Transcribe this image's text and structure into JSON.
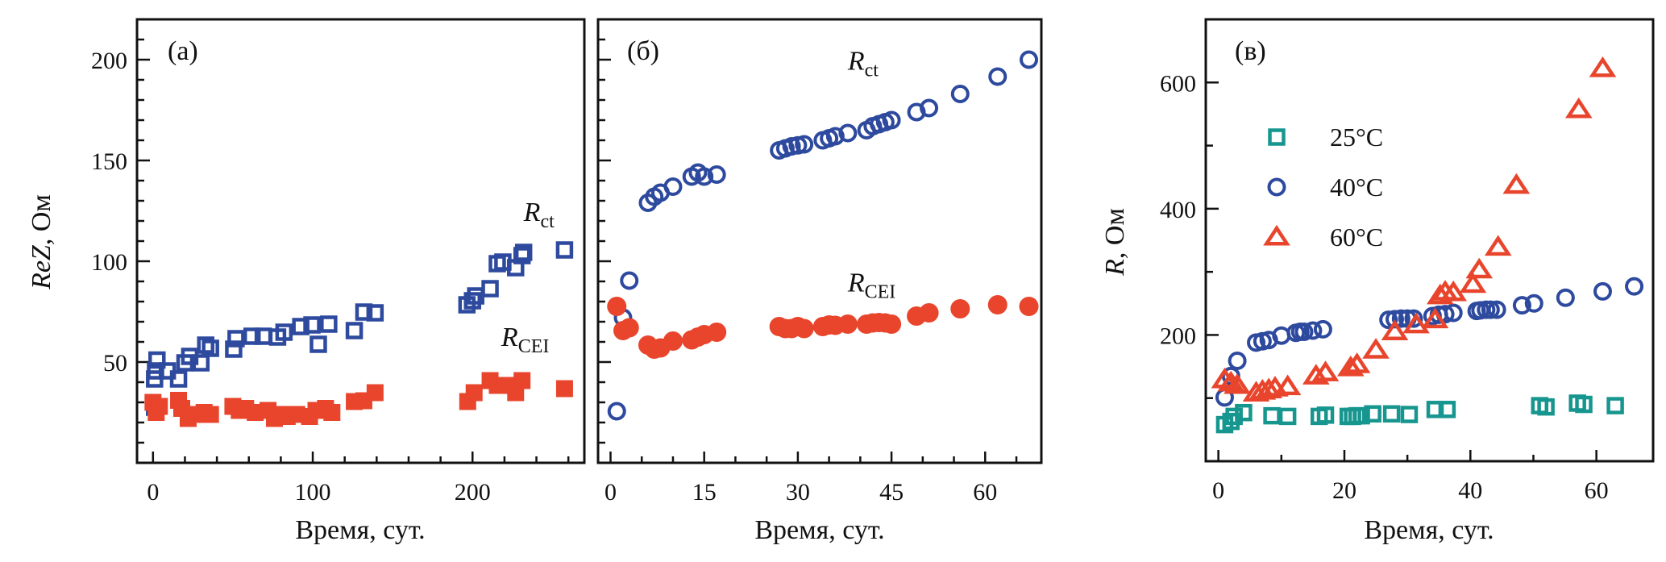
{
  "chart_data": [
    {
      "id": "a",
      "type": "scatter",
      "panel_label": "(а)",
      "xlabel": "Время, сут.",
      "ylabel_main": "ReZ",
      "ylabel_rest": ", Ом",
      "xlim": [
        -10,
        270
      ],
      "ylim": [
        0,
        220
      ],
      "xticks": [
        0,
        100,
        200
      ],
      "xminor_step": 20,
      "yticks": [
        50,
        100,
        150,
        200
      ],
      "yminor_step": 10,
      "grid": false,
      "annotations": [
        {
          "main": "R",
          "sub": "ct",
          "x": 232,
          "y": 120
        },
        {
          "main": "R",
          "sub": "CEI",
          "x": 218,
          "y": 58
        }
      ],
      "series": [
        {
          "name": "Rct",
          "marker": "square-open",
          "color": "#2e4a9e",
          "x": [
            1,
            2.5,
            1.6,
            1,
            9,
            16,
            20,
            23,
            30,
            33,
            36,
            50.5,
            52,
            62,
            69,
            78,
            82,
            92.5,
            99.5,
            103.5,
            110,
            126,
            132,
            139,
            196.5,
            200,
            202,
            211,
            215.5,
            219,
            227,
            231,
            232,
            257.6
          ],
          "y": [
            27.6,
            51,
            45.6,
            41.6,
            45.6,
            41.6,
            49.6,
            52.8,
            49.6,
            58.4,
            56.8,
            56.4,
            61.6,
            62.8,
            62.8,
            62.4,
            64.8,
            67.6,
            68.4,
            58.8,
            68.8,
            65.6,
            74.8,
            74.4,
            78.4,
            80.4,
            82.8,
            86.4,
            98.8,
            99.6,
            96.8,
            102.8,
            104.4,
            105.6
          ]
        },
        {
          "name": "RCEI",
          "marker": "square-filled",
          "color": "#e8452c",
          "x": [
            0,
            2,
            4,
            16,
            18,
            22,
            26,
            32,
            36,
            50,
            54,
            58,
            64,
            72,
            76,
            80,
            84,
            90,
            98,
            102,
            108,
            112,
            126,
            132,
            139,
            197,
            201,
            211,
            215.5,
            220.7,
            227,
            231,
            257.6
          ],
          "y": [
            30,
            25,
            28,
            31,
            27,
            22,
            24,
            25,
            24,
            28,
            26,
            27,
            25,
            26,
            22,
            24,
            23,
            24,
            23,
            26,
            27,
            25,
            30.4,
            30.8,
            34.8,
            30.4,
            34.8,
            40.8,
            38.4,
            38.4,
            34.8,
            40.8,
            36.8
          ]
        }
      ]
    },
    {
      "id": "b",
      "type": "scatter",
      "panel_label": "(б)",
      "xlabel": "Время, сут.",
      "xlim": [
        -2,
        69
      ],
      "ylim": [
        0,
        220
      ],
      "xticks": [
        0,
        15,
        30,
        45,
        60
      ],
      "xminor_step": 5,
      "yticks": [
        50,
        100,
        150,
        200
      ],
      "yminor_step": 10,
      "show_ytick_labels": false,
      "grid": false,
      "annotations": [
        {
          "main": "R",
          "sub": "ct",
          "x": 38,
          "y": 195
        },
        {
          "main": "R",
          "sub": "CEI",
          "x": 38,
          "y": 85
        }
      ],
      "series": [
        {
          "name": "Rct",
          "marker": "circle-open",
          "color": "#2e4a9e",
          "x": [
            1,
            2,
            3,
            6,
            7,
            8,
            10,
            13,
            14,
            15,
            17,
            27,
            28,
            29,
            30,
            31,
            34,
            35,
            36,
            38,
            41,
            42,
            43,
            44,
            45,
            49,
            51,
            56,
            62,
            67
          ],
          "y": [
            25.6,
            72,
            90.4,
            129,
            132,
            134,
            137,
            142,
            144,
            142,
            143,
            155,
            156,
            157,
            157.5,
            158,
            160,
            161,
            162,
            163.6,
            165,
            167,
            168,
            169,
            170,
            174,
            176,
            183,
            191.6,
            200
          ]
        },
        {
          "name": "RCEI",
          "marker": "circle-filled",
          "color": "#e8452c",
          "x": [
            1,
            2,
            3,
            6,
            7,
            8,
            10,
            13,
            14,
            15,
            17,
            27,
            28,
            29,
            30,
            31,
            34,
            35,
            36,
            38,
            41,
            42,
            43,
            44,
            45,
            49,
            51,
            56,
            62,
            67
          ],
          "y": [
            77.6,
            65.6,
            67,
            58.4,
            56.4,
            57,
            60.4,
            61,
            62.4,
            63.6,
            64.8,
            67.6,
            66.6,
            66.6,
            67.6,
            66.6,
            67.6,
            68.4,
            68.2,
            68.8,
            68.8,
            69.4,
            69.6,
            69.4,
            68.8,
            72.8,
            74.4,
            76.4,
            78.4,
            77.6
          ]
        }
      ]
    },
    {
      "id": "c",
      "type": "scatter",
      "panel_label": "(в)",
      "xlabel": "Время, сут.",
      "ylabel_main": "R",
      "ylabel_rest": ", Ом",
      "xlim": [
        -2,
        69
      ],
      "ylim": [
        0,
        700
      ],
      "xticks": [
        0,
        20,
        40,
        60
      ],
      "xminor_step": 10,
      "yticks": [
        200,
        400,
        600
      ],
      "yminor_step": 100,
      "grid": false,
      "legend_position": "upper-left",
      "series": [
        {
          "name": "25°C",
          "marker": "square-open",
          "color": "#17968f",
          "x": [
            1,
            2,
            2.5,
            4,
            8.5,
            11,
            16,
            17,
            20.6,
            21.3,
            22,
            22.7,
            24.5,
            27.5,
            30.3,
            34.4,
            36.3,
            51,
            52,
            57,
            58,
            63
          ],
          "y": [
            58,
            63,
            71,
            77,
            72,
            71,
            71,
            73,
            71,
            71,
            72,
            72,
            75,
            75,
            74,
            82,
            82,
            88,
            86,
            92,
            90,
            88
          ]
        },
        {
          "name": "40°C",
          "marker": "circle-open",
          "color": "#2e4a9e",
          "x": [
            1,
            2,
            3,
            6,
            7,
            8,
            10,
            12.3,
            13,
            13.6,
            15,
            16.6,
            27,
            28,
            29,
            30,
            31,
            34,
            35,
            36,
            37.3,
            41,
            41.6,
            42.5,
            43.2,
            44.2,
            48.2,
            50.1,
            55.1,
            61,
            66
          ],
          "y": [
            101,
            135,
            159,
            188,
            190,
            192,
            199,
            203.5,
            205,
            205,
            207,
            209,
            224,
            225,
            226,
            226,
            226,
            230,
            232,
            233,
            235,
            238,
            239,
            240,
            240,
            240,
            247,
            250,
            259,
            269,
            277
          ]
        },
        {
          "name": "60°C",
          "marker": "triangle-open",
          "color": "#e8452c",
          "x": [
            1,
            2,
            3,
            6,
            7,
            8,
            9,
            11,
            15.5,
            17,
            21,
            22,
            25,
            28,
            31.4,
            34.4,
            35.2,
            36,
            37.3,
            40.4,
            41.4,
            44.4,
            47.3,
            57.2,
            61
          ],
          "y": [
            129,
            124,
            120,
            108,
            111,
            113,
            116,
            118,
            135,
            140,
            148,
            153,
            176,
            205,
            216,
            224,
            262,
            268,
            267,
            280,
            303,
            339,
            437,
            557,
            622
          ]
        }
      ]
    }
  ]
}
